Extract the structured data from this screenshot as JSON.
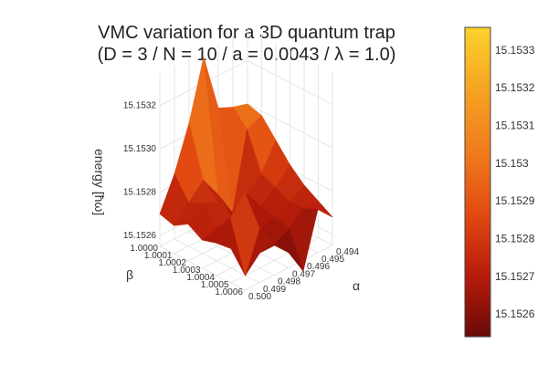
{
  "chart_data": {
    "type": "surface",
    "title_lines": [
      "VMC variation for a 3D quantum trap",
      "(D = 3 / N = 10 / a = 0.0043 / λ = 1.0)"
    ],
    "xlabel": "α",
    "ylabel": "β",
    "zlabel": "energy [ħω]",
    "alpha_ticks": [
      "0.494",
      "0.495",
      "0.496",
      "0.497",
      "0.498",
      "0.499",
      "0.500"
    ],
    "beta_ticks": [
      "1.0000",
      "1.0001",
      "1.0002",
      "1.0003",
      "1.0004",
      "1.0005",
      "1.0006"
    ],
    "energy_ticks": [
      "15.1526",
      "15.1528",
      "15.1530",
      "15.1532"
    ],
    "alpha": [
      0.494,
      0.495,
      0.496,
      0.497,
      0.498,
      0.499,
      0.5
    ],
    "beta": [
      1.0,
      1.0001,
      1.0002,
      1.0003,
      1.0004,
      1.0005,
      1.0006
    ],
    "energy": [
      [
        15.153,
        15.15302,
        15.15305,
        15.15332,
        15.15305,
        15.15285,
        15.1527
      ],
      [
        15.15298,
        15.15295,
        15.1526,
        15.15272,
        15.15282,
        15.15275,
        15.15268
      ],
      [
        15.1529,
        15.15278,
        15.15272,
        15.15265,
        15.15275,
        15.15278,
        15.15272
      ],
      [
        15.15282,
        15.15275,
        15.1527,
        15.15268,
        15.15272,
        15.1527,
        15.15268
      ],
      [
        15.15276,
        15.15272,
        15.15268,
        15.15266,
        15.15268,
        15.15264,
        15.1527
      ],
      [
        15.15272,
        15.15272,
        15.15266,
        15.15262,
        15.15262,
        15.15255,
        15.15285
      ],
      [
        15.15268,
        15.15275,
        15.1525,
        15.15262,
        15.1527,
        15.1528,
        15.153
      ]
    ],
    "zlim": [
      15.15255,
      15.15335
    ],
    "colorbar": {
      "ticks": [
        "15.1533",
        "15.1532",
        "15.1531",
        "15.153",
        "15.1529",
        "15.1528",
        "15.1527",
        "15.1526"
      ],
      "tick_values": [
        15.1533,
        15.1532,
        15.1531,
        15.153,
        15.1529,
        15.1528,
        15.1527,
        15.1526
      ],
      "range": [
        15.15254,
        15.15336
      ],
      "colorscale": [
        "#6b0a0a",
        "#b71c0a",
        "#e14b12",
        "#f07c1c",
        "#f5a423",
        "#fcd22c"
      ]
    },
    "grid": true
  }
}
